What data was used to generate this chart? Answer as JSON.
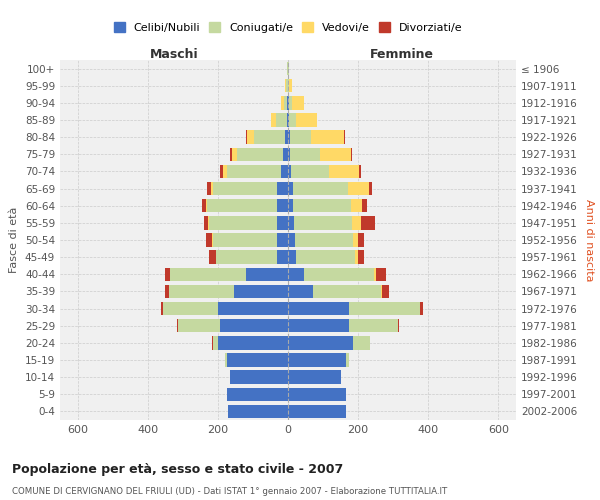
{
  "age_groups": [
    "0-4",
    "5-9",
    "10-14",
    "15-19",
    "20-24",
    "25-29",
    "30-34",
    "35-39",
    "40-44",
    "45-49",
    "50-54",
    "55-59",
    "60-64",
    "65-69",
    "70-74",
    "75-79",
    "80-84",
    "85-89",
    "90-94",
    "95-99",
    "100+"
  ],
  "birth_years": [
    "2002-2006",
    "1997-2001",
    "1992-1996",
    "1987-1991",
    "1982-1986",
    "1977-1981",
    "1972-1976",
    "1967-1971",
    "1962-1966",
    "1957-1961",
    "1952-1956",
    "1947-1951",
    "1942-1946",
    "1937-1941",
    "1932-1936",
    "1927-1931",
    "1922-1926",
    "1917-1921",
    "1912-1916",
    "1907-1911",
    "≤ 1906"
  ],
  "maschi": {
    "celibi": [
      170,
      175,
      165,
      175,
      200,
      195,
      200,
      155,
      120,
      30,
      30,
      30,
      30,
      30,
      20,
      15,
      8,
      4,
      2,
      0,
      0
    ],
    "coniugati": [
      0,
      0,
      0,
      5,
      15,
      120,
      155,
      185,
      215,
      175,
      185,
      195,
      200,
      185,
      155,
      130,
      90,
      30,
      10,
      5,
      2
    ],
    "vedovi": [
      0,
      0,
      0,
      0,
      0,
      0,
      0,
      0,
      1,
      1,
      2,
      3,
      4,
      5,
      10,
      15,
      20,
      15,
      8,
      3,
      0
    ],
    "divorziati": [
      0,
      0,
      0,
      0,
      2,
      2,
      8,
      10,
      15,
      20,
      18,
      12,
      10,
      10,
      8,
      5,
      2,
      0,
      0,
      0,
      0
    ]
  },
  "femmine": {
    "nubili": [
      165,
      165,
      150,
      165,
      185,
      175,
      175,
      70,
      45,
      22,
      20,
      18,
      15,
      15,
      8,
      5,
      5,
      4,
      2,
      0,
      0
    ],
    "coniugate": [
      0,
      0,
      0,
      8,
      50,
      140,
      200,
      195,
      200,
      170,
      165,
      165,
      165,
      155,
      110,
      85,
      60,
      20,
      8,
      3,
      2
    ],
    "vedove": [
      0,
      0,
      0,
      0,
      0,
      0,
      2,
      3,
      5,
      8,
      15,
      25,
      30,
      60,
      85,
      90,
      95,
      60,
      35,
      8,
      2
    ],
    "divorziate": [
      0,
      0,
      0,
      0,
      0,
      2,
      8,
      20,
      30,
      18,
      18,
      40,
      15,
      10,
      5,
      3,
      2,
      0,
      0,
      0,
      0
    ]
  },
  "colors": {
    "celibi_nubili": "#4472C4",
    "coniugati": "#C5D9A0",
    "vedovi": "#FFD966",
    "divorziati": "#C0392B"
  },
  "title": "Popolazione per età, sesso e stato civile - 2007",
  "subtitle": "COMUNE DI CERVIGNANO DEL FRIULI (UD) - Dati ISTAT 1° gennaio 2007 - Elaborazione TUTTITALIA.IT",
  "ylabel_left": "Fasce di età",
  "ylabel_right": "Anni di nascita",
  "xlabel_maschi": "Maschi",
  "xlabel_femmine": "Femmine",
  "xlim": 650,
  "legend_labels": [
    "Celibi/Nubili",
    "Coniugati/e",
    "Vedovi/e",
    "Divorziati/e"
  ],
  "bg_color": "#FFFFFF",
  "grid_color": "#CCCCCC"
}
